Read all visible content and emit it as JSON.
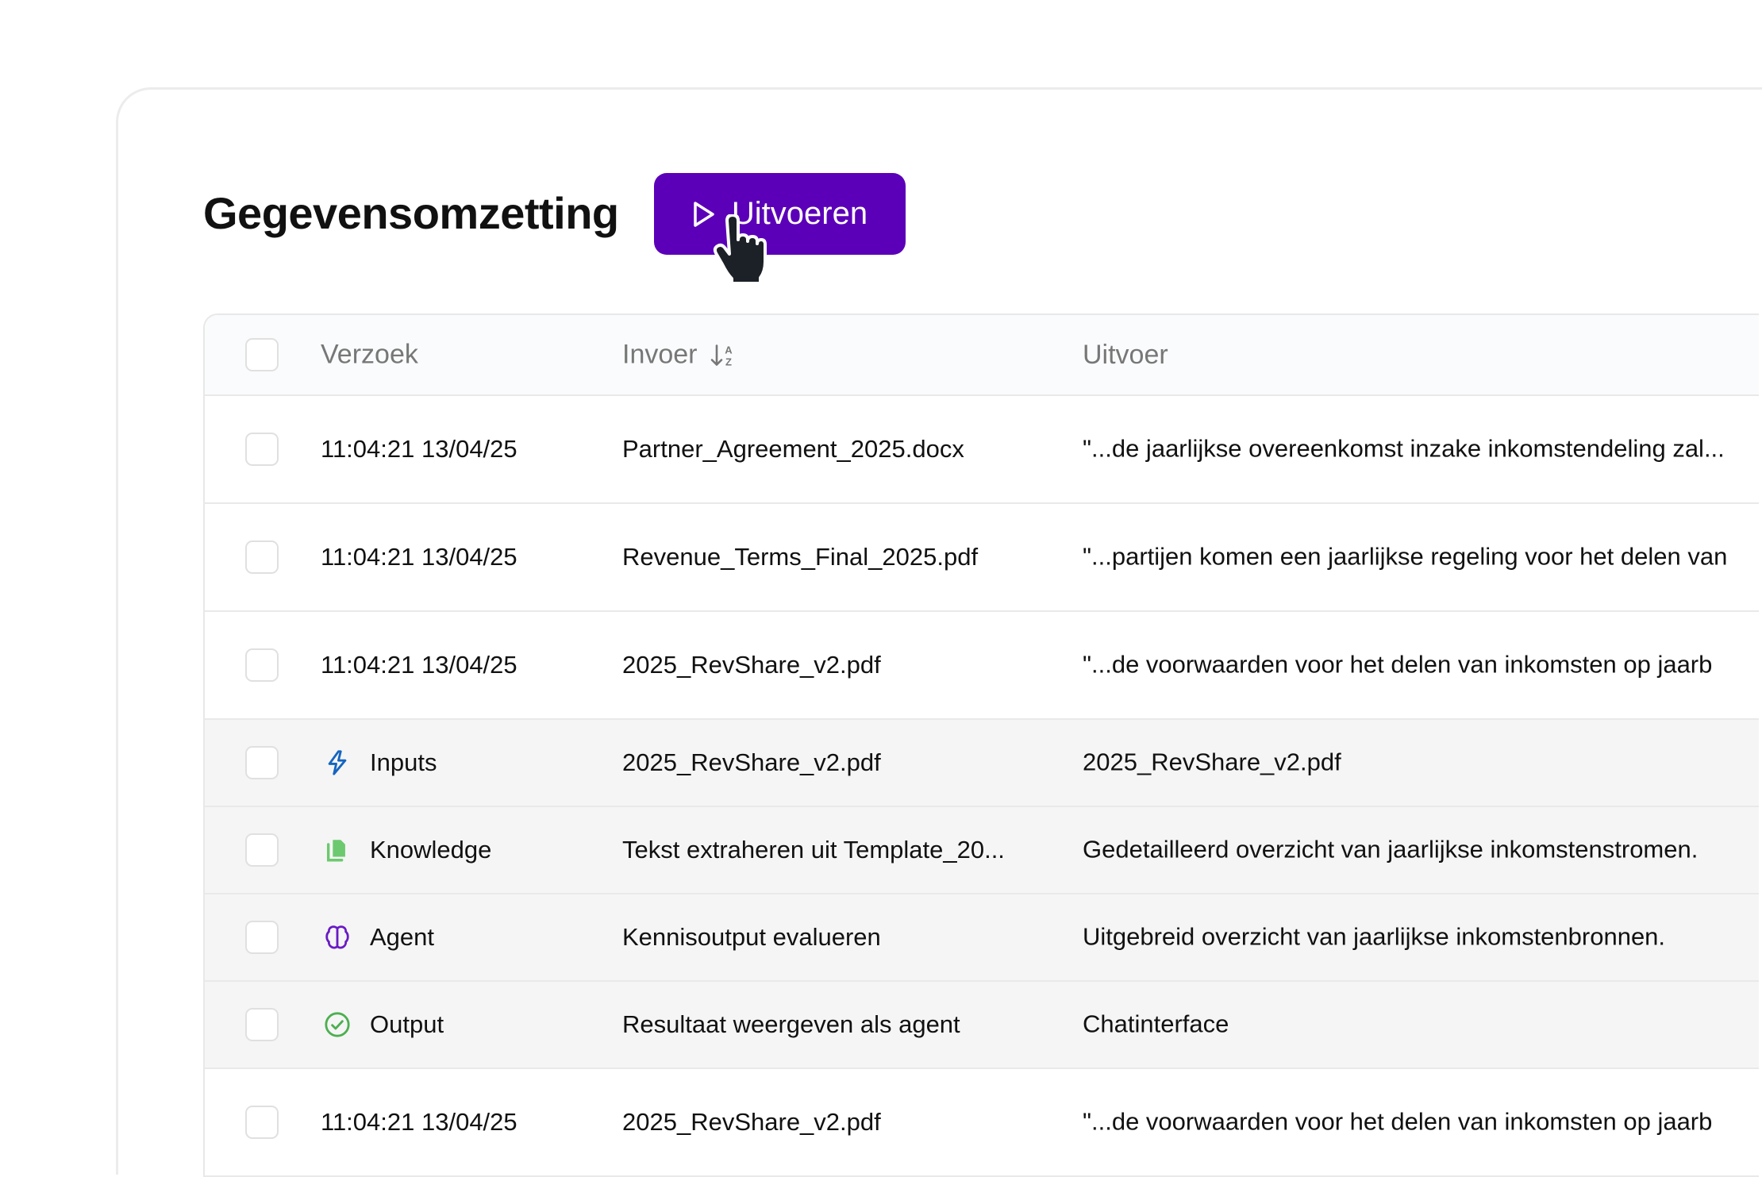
{
  "title": "Gegevensomzetting",
  "run_button": {
    "label": "Uitvoeren",
    "icon": "play-icon",
    "color": "#5b00b8"
  },
  "table": {
    "columns": [
      "Verzoek",
      "Invoer",
      "Uitvoer"
    ],
    "sort_icon": "sort-alpha-down-icon",
    "rows": [
      {
        "type": "data",
        "request": "11:04:21 13/04/25",
        "input": "Partner_Agreement_2025.docx",
        "output": "\"...de jaarlijkse overeenkomst inzake inkomstendeling zal..."
      },
      {
        "type": "data",
        "request": "11:04:21 13/04/25",
        "input": "Revenue_Terms_Final_2025.pdf",
        "output": "\"...partijen komen een jaarlijkse regeling voor het delen van"
      },
      {
        "type": "data",
        "request": "11:04:21 13/04/25",
        "input": "2025_RevShare_v2.pdf",
        "output": "\"...de voorwaarden voor het delen van inkomsten op jaarb"
      },
      {
        "type": "step",
        "icon": "lightning-icon",
        "icon_color": "#1565c0",
        "request": "Inputs",
        "input": "2025_RevShare_v2.pdf",
        "output": "2025_RevShare_v2.pdf"
      },
      {
        "type": "step",
        "icon": "documents-icon",
        "icon_color": "#6cc96f",
        "request": "Knowledge",
        "input": "Tekst extraheren uit Template_20...",
        "output": "Gedetailleerd overzicht van jaarlijkse inkomstenstromen."
      },
      {
        "type": "step",
        "icon": "brain-icon",
        "icon_color": "#6a1bc4",
        "request": "Agent",
        "input": "Kennisoutput evalueren",
        "output": "Uitgebreid overzicht van jaarlijkse inkomstenbronnen."
      },
      {
        "type": "step",
        "icon": "check-circle-icon",
        "icon_color": "#4caf50",
        "request": "Output",
        "input": "Resultaat weergeven als agent",
        "output": "Chatinterface"
      },
      {
        "type": "data",
        "request": "11:04:21 13/04/25",
        "input": "2025_RevShare_v2.pdf",
        "output": "\"...de voorwaarden voor het delen van inkomsten op jaarb"
      }
    ]
  }
}
